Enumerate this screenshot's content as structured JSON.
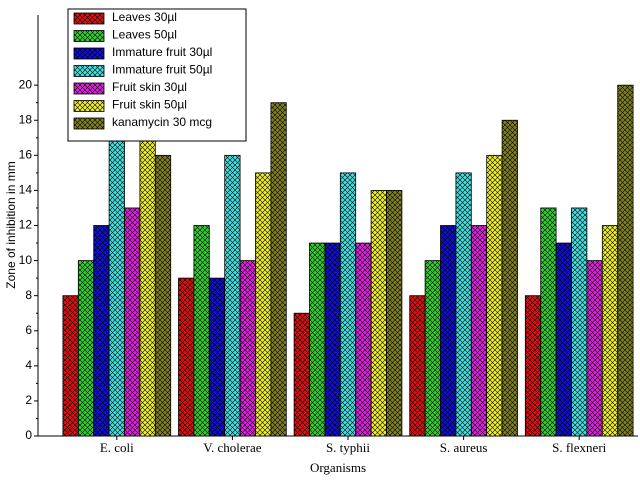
{
  "chart_data": {
    "type": "bar",
    "x_label": "Organisms",
    "y_label": "Zone of inhibition in mm",
    "categories": [
      "E. coli",
      "V. cholerae",
      "S. typhii",
      "S. aureus",
      "S. flexneri"
    ],
    "series": [
      {
        "name": "Leaves 30µl",
        "color": "#e01010",
        "values": [
          8,
          9,
          7,
          8,
          8
        ]
      },
      {
        "name": "Leaves 50µl",
        "color": "#30d030",
        "values": [
          10,
          12,
          11,
          10,
          13
        ]
      },
      {
        "name": "Immature fruit 30µl",
        "color": "#1010d0",
        "values": [
          12,
          9,
          11,
          12,
          11
        ]
      },
      {
        "name": "Immature fruit 50µl",
        "color": "#40e0e0",
        "values": [
          17,
          16,
          15,
          15,
          13
        ]
      },
      {
        "name": "Fruit skin 30µl",
        "color": "#e020e0",
        "values": [
          13,
          10,
          11,
          12,
          10
        ]
      },
      {
        "name": "Fruit skin 50µl",
        "color": "#f0f020",
        "values": [
          18,
          15,
          14,
          16,
          12
        ]
      },
      {
        "name": "kanamycin 30 mcg",
        "color": "#808020",
        "values": [
          16,
          19,
          14,
          18,
          20
        ]
      }
    ],
    "ylim": [
      0,
      24
    ],
    "yticks": [
      0,
      2,
      4,
      6,
      8,
      10,
      12,
      14,
      16,
      18,
      20
    ],
    "hatch": true,
    "legend": "top-left"
  }
}
